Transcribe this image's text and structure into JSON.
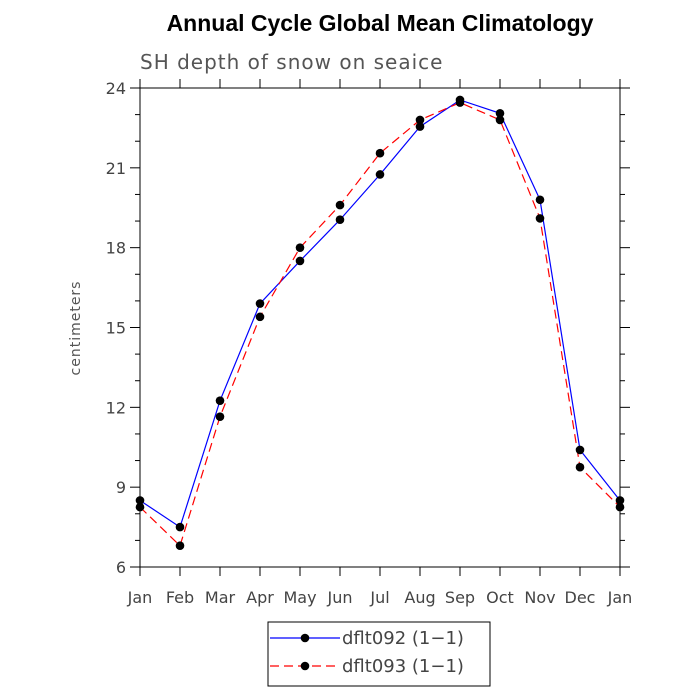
{
  "chart_data": {
    "type": "line",
    "title": "Annual Cycle Global Mean Climatology",
    "subtitle": "SH depth of snow on seaice",
    "xlabel": "",
    "ylabel": "centimeters",
    "categories": [
      "Jan",
      "Feb",
      "Mar",
      "Apr",
      "May",
      "Jun",
      "Jul",
      "Aug",
      "Sep",
      "Oct",
      "Nov",
      "Dec",
      "Jan"
    ],
    "ylim": [
      6,
      24
    ],
    "yticks": [
      "6",
      "9",
      "12",
      "15",
      "18",
      "21",
      "24"
    ],
    "legend_position": "bottom-center",
    "grid": false,
    "series": [
      {
        "name": "dflt092 (1−1)",
        "color": "#0000ff",
        "dash": "solid",
        "values": [
          8.5,
          7.5,
          12.25,
          15.9,
          17.5,
          19.05,
          20.75,
          22.55,
          23.55,
          23.05,
          19.8,
          10.4,
          8.5
        ]
      },
      {
        "name": "dflt093 (1−1)",
        "color": "#ff0000",
        "dash": "dashed",
        "values": [
          8.25,
          6.8,
          11.65,
          15.4,
          18.0,
          19.6,
          21.55,
          22.8,
          23.45,
          22.8,
          19.1,
          9.75,
          8.25
        ]
      }
    ]
  }
}
